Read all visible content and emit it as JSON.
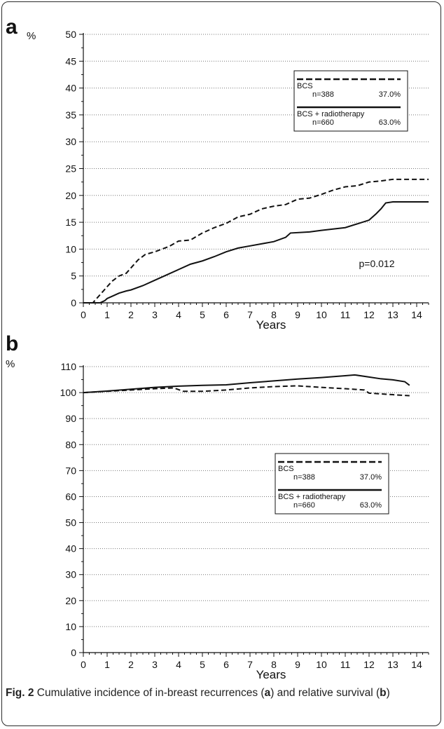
{
  "figure": {
    "caption_label": "Fig. 2",
    "caption_parts": [
      {
        "text": " Cumulative incidence of in-breast recurrences (",
        "bold": false
      },
      {
        "text": "a",
        "bold": true
      },
      {
        "text": ") and relative survival (",
        "bold": false
      },
      {
        "text": "b",
        "bold": true
      },
      {
        "text": ")",
        "bold": false
      }
    ]
  },
  "chart_data": [
    {
      "panel": "a",
      "type": "line",
      "unit": "%",
      "xlabel": "Years",
      "ylabel": "",
      "xlim": [
        0,
        14.5
      ],
      "ylim": [
        0,
        50
      ],
      "x_ticks": [
        0,
        1,
        2,
        3,
        4,
        5,
        6,
        7,
        8,
        9,
        10,
        11,
        12,
        13,
        14
      ],
      "y_ticks": [
        0,
        5,
        10,
        15,
        20,
        25,
        30,
        35,
        40,
        45,
        50
      ],
      "grid": "horizontal dotted",
      "legend_placement": "top-right",
      "annotation": "p=0.012",
      "series": [
        {
          "name": "BCS",
          "n": "n=388",
          "pct": "37.0%",
          "style": "dashed",
          "x": [
            0,
            0.4,
            0.6,
            0.8,
            1.0,
            1.2,
            1.5,
            1.8,
            2.0,
            2.3,
            2.6,
            3.0,
            3.3,
            3.6,
            4.0,
            4.5,
            5.0,
            5.5,
            6.0,
            6.5,
            7.0,
            7.5,
            8.0,
            8.5,
            9.0,
            9.5,
            10.0,
            10.5,
            11.0,
            11.5,
            12.0,
            12.5,
            13.0,
            14.5
          ],
          "y": [
            0,
            0,
            1,
            2,
            3,
            4,
            5,
            5.5,
            6.5,
            8,
            9,
            9.5,
            10,
            10.5,
            11.5,
            11.7,
            13,
            14,
            14.8,
            16,
            16.5,
            17.5,
            18,
            18.3,
            19.3,
            19.5,
            20.2,
            21,
            21.6,
            21.8,
            22.5,
            22.7,
            23,
            23
          ]
        },
        {
          "name": "BCS + radiotherapy",
          "n": "n=660",
          "pct": "63.0%",
          "style": "solid",
          "x": [
            0,
            0.7,
            0.9,
            1.0,
            1.2,
            1.5,
            1.8,
            2.0,
            2.5,
            3.0,
            3.5,
            4.0,
            4.5,
            5.0,
            5.5,
            6.0,
            6.5,
            7.0,
            7.5,
            8.0,
            8.5,
            8.7,
            9.5,
            10.0,
            11.0,
            11.5,
            12.0,
            12.3,
            12.5,
            12.7,
            13.0,
            14.5
          ],
          "y": [
            0,
            0,
            0.4,
            0.8,
            1.2,
            1.8,
            2.2,
            2.4,
            3.2,
            4.2,
            5.2,
            6.2,
            7.2,
            7.8,
            8.6,
            9.5,
            10.2,
            10.6,
            11.0,
            11.4,
            12.2,
            13.0,
            13.2,
            13.5,
            14.0,
            14.7,
            15.4,
            16.6,
            17.5,
            18.6,
            18.8,
            18.8
          ]
        }
      ]
    },
    {
      "panel": "b",
      "type": "line",
      "unit": "%",
      "xlabel": "Years",
      "ylabel": "",
      "xlim": [
        0,
        14.5
      ],
      "ylim": [
        0,
        110
      ],
      "x_ticks": [
        0,
        1,
        2,
        3,
        4,
        5,
        6,
        7,
        8,
        9,
        10,
        11,
        12,
        13,
        14
      ],
      "y_ticks": [
        0,
        10,
        20,
        30,
        40,
        50,
        60,
        70,
        80,
        90,
        100,
        110
      ],
      "grid": "horizontal dotted",
      "legend_placement": "center-right",
      "series": [
        {
          "name": "BCS",
          "n": "n=388",
          "pct": "37.0%",
          "style": "dashed",
          "x": [
            0,
            1,
            2,
            3,
            3.8,
            4.2,
            5.0,
            6.0,
            7.0,
            8.0,
            9.0,
            10.0,
            11.0,
            11.8,
            12.0,
            12.5,
            13.0,
            13.7
          ],
          "y": [
            100,
            100.5,
            101,
            101.5,
            101.8,
            100.5,
            100.5,
            101,
            101.8,
            102.3,
            102.6,
            102,
            101.5,
            101,
            99.8,
            99.5,
            99.2,
            98.8
          ]
        },
        {
          "name": "BCS + radiotherapy",
          "n": "n=660",
          "pct": "63.0%",
          "style": "solid",
          "x": [
            0,
            1,
            2,
            3,
            4,
            5,
            6,
            7,
            8,
            9,
            10,
            11,
            11.4,
            12,
            12.5,
            13,
            13.5,
            13.7
          ],
          "y": [
            100,
            100.6,
            101.3,
            102,
            102.5,
            102.8,
            103,
            103.8,
            104.5,
            105.2,
            105.8,
            106.5,
            106.8,
            106,
            105.3,
            104.9,
            104.2,
            102.8
          ]
        }
      ]
    }
  ]
}
